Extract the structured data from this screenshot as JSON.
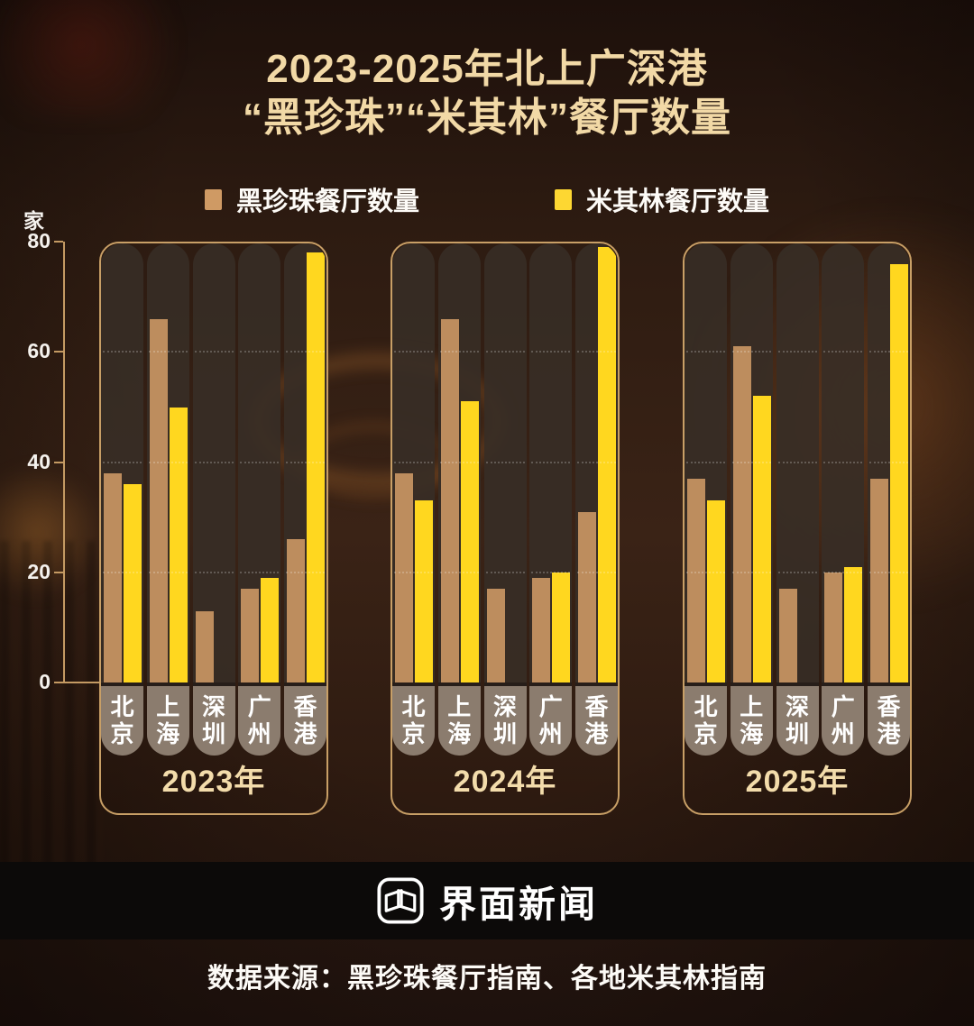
{
  "header": {
    "title_line1": "2023-2025年北上广深港",
    "title_line2": "“黑珍珠”“米其林”餐厅数量"
  },
  "legend": {
    "black_pearl": "黑珍珠餐厅数量",
    "michelin": "米其林餐厅数量"
  },
  "footer": {
    "logo_text": "界面新闻",
    "source": "数据来源：黑珍珠餐厅指南、各地米其林指南"
  },
  "colors": {
    "black_pearl_bar": "#bd8d5e",
    "michelin_bar": "#ffd71f",
    "legend_black_pearl_swatch": "#cf9a64",
    "legend_michelin_swatch": "#fdd732",
    "title_gold": "#f2d9a6",
    "axis_gold": "#c49a63",
    "group_border": "#c89f66"
  },
  "chart_data": {
    "type": "bar",
    "subtype": "grouped-by-year",
    "unit_label": "家",
    "ylim": [
      0,
      80
    ],
    "y_ticks": [
      0,
      20,
      40,
      60,
      80
    ],
    "grid_levels": [
      20,
      40,
      60
    ],
    "categories": [
      "北京",
      "上海",
      "深圳",
      "广州",
      "香港"
    ],
    "series_names": [
      "黑珍珠餐厅数量",
      "米其林餐厅数量"
    ],
    "groups": [
      {
        "label": "2023年",
        "black_pearl": [
          38,
          66,
          13,
          17,
          26
        ],
        "michelin": [
          36,
          50,
          0,
          19,
          78
        ]
      },
      {
        "label": "2024年",
        "black_pearl": [
          38,
          66,
          17,
          19,
          31
        ],
        "michelin": [
          33,
          51,
          0,
          20,
          79
        ]
      },
      {
        "label": "2025年",
        "black_pearl": [
          37,
          61,
          17,
          20,
          37
        ],
        "michelin": [
          33,
          52,
          0,
          21,
          76
        ]
      }
    ]
  }
}
